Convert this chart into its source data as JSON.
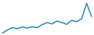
{
  "values": [
    3.0,
    4.5,
    5.5,
    5.0,
    5.8,
    5.3,
    5.9,
    5.5,
    6.8,
    7.8,
    7.2,
    8.5,
    7.8,
    7.0,
    8.8,
    8.2,
    9.5,
    16.5,
    10.5
  ],
  "line_color": "#2e86c1",
  "line_width": 1.1,
  "background_color": "#ffffff"
}
